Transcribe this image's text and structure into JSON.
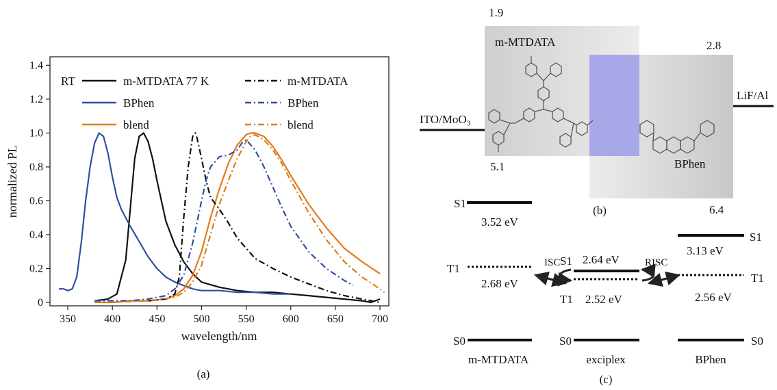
{
  "panel_labels": {
    "a": "(a)",
    "b": "(b)",
    "c": "(c)"
  },
  "chart_data": {
    "type": "line",
    "xlabel": "wavelength/nm",
    "ylabel": "normalized PL",
    "xlim": [
      330,
      710
    ],
    "ylim": [
      -0.02,
      1.45
    ],
    "xticks": [
      350,
      400,
      450,
      500,
      550,
      600,
      650,
      700
    ],
    "yticks": [
      0,
      0.2,
      0.4,
      0.6,
      0.8,
      1.0,
      1.2,
      1.4
    ],
    "ytick_labels": [
      "0",
      "0.2",
      "0.4",
      "0.6",
      "0.8",
      "1.0",
      "1.2",
      "1.4"
    ],
    "grid": false,
    "legend_placement": "top",
    "legend_header": "RT",
    "colors": {
      "mmtdata": "#111111",
      "bphen": "#2f4fa3",
      "blend": "#e07b18"
    },
    "series": [
      {
        "name": "m-MTDATA 77 K",
        "color": "#111111",
        "dash": "solid",
        "x": [
          380,
          395,
          405,
          415,
          420,
          425,
          430,
          435,
          440,
          445,
          450,
          455,
          460,
          470,
          480,
          490,
          500,
          520,
          540,
          560,
          580,
          600,
          620,
          640,
          660,
          680,
          690,
          700
        ],
        "y": [
          0.01,
          0.02,
          0.05,
          0.25,
          0.55,
          0.85,
          0.98,
          1.0,
          0.95,
          0.85,
          0.72,
          0.6,
          0.48,
          0.34,
          0.24,
          0.17,
          0.12,
          0.09,
          0.07,
          0.06,
          0.06,
          0.05,
          0.04,
          0.03,
          0.02,
          0.01,
          0.0,
          0.02
        ]
      },
      {
        "name": "BPhen",
        "color": "#2f4fa3",
        "dash": "solid",
        "x": [
          340,
          345,
          350,
          355,
          360,
          365,
          370,
          375,
          380,
          385,
          390,
          395,
          400,
          405,
          410,
          420,
          430,
          440,
          450,
          460,
          470,
          480,
          490,
          500,
          520,
          540,
          560,
          580,
          600
        ],
        "y": [
          0.08,
          0.08,
          0.07,
          0.08,
          0.15,
          0.35,
          0.6,
          0.8,
          0.94,
          1.0,
          0.98,
          0.88,
          0.74,
          0.62,
          0.55,
          0.45,
          0.36,
          0.27,
          0.2,
          0.15,
          0.12,
          0.1,
          0.08,
          0.07,
          0.07,
          0.06,
          0.06,
          0.05,
          0.05
        ]
      },
      {
        "name": "blend",
        "color": "#e07b18",
        "dash": "solid",
        "x": [
          380,
          400,
          420,
          440,
          460,
          470,
          480,
          490,
          500,
          510,
          520,
          530,
          540,
          550,
          555,
          560,
          570,
          580,
          590,
          600,
          620,
          640,
          660,
          680,
          700
        ],
        "y": [
          0.0,
          0.0,
          0.01,
          0.01,
          0.02,
          0.04,
          0.08,
          0.16,
          0.3,
          0.5,
          0.67,
          0.82,
          0.93,
          0.99,
          1.0,
          1.0,
          0.98,
          0.92,
          0.84,
          0.75,
          0.58,
          0.44,
          0.32,
          0.24,
          0.17
        ]
      },
      {
        "name": "m-MTDATA",
        "color": "#111111",
        "dash": "dashdot",
        "x": [
          440,
          460,
          470,
          475,
          480,
          485,
          490,
          493,
          495,
          500,
          505,
          510,
          520,
          530,
          540,
          560,
          580,
          600,
          620,
          640,
          660,
          680,
          700
        ],
        "y": [
          0.01,
          0.02,
          0.05,
          0.15,
          0.5,
          0.8,
          0.98,
          1.0,
          0.97,
          0.85,
          0.72,
          0.62,
          0.55,
          0.47,
          0.38,
          0.26,
          0.2,
          0.15,
          0.11,
          0.07,
          0.04,
          0.02,
          0.0
        ]
      },
      {
        "name": "BPhen",
        "color": "#2f4fa3",
        "dash": "dashdot",
        "x": [
          380,
          420,
          440,
          460,
          470,
          480,
          490,
          500,
          505,
          510,
          520,
          530,
          540,
          545,
          550,
          560,
          570,
          580,
          590,
          600,
          620,
          640,
          660,
          670
        ],
        "y": [
          0.01,
          0.01,
          0.02,
          0.04,
          0.08,
          0.16,
          0.35,
          0.6,
          0.72,
          0.8,
          0.86,
          0.87,
          0.9,
          0.94,
          0.96,
          0.9,
          0.8,
          0.68,
          0.56,
          0.45,
          0.3,
          0.2,
          0.13,
          0.1
        ]
      },
      {
        "name": "blend",
        "color": "#e07b18",
        "dash": "dashdot",
        "x": [
          400,
          440,
          470,
          480,
          490,
          500,
          510,
          520,
          530,
          540,
          550,
          555,
          560,
          570,
          580,
          590,
          600,
          620,
          640,
          660,
          680,
          700,
          705
        ],
        "y": [
          0.0,
          0.01,
          0.03,
          0.06,
          0.12,
          0.22,
          0.4,
          0.58,
          0.72,
          0.85,
          0.95,
          0.98,
          0.99,
          0.96,
          0.9,
          0.82,
          0.72,
          0.53,
          0.37,
          0.24,
          0.15,
          0.08,
          0.06
        ]
      }
    ]
  },
  "diagram_b": {
    "left_electrode": "ITO/MoO₃",
    "right_electrode": "LiF/Al",
    "donor": {
      "name": "m-MTDATA",
      "lumo": "1.9",
      "homo": "5.1"
    },
    "acceptor": {
      "name": "BPhen",
      "lumo": "2.8",
      "homo": "6.4"
    },
    "colors": {
      "donor_box": "#d9d9d9",
      "acceptor_box": "#cfcfcf",
      "overlap": "#a8a8e8"
    }
  },
  "diagram_c": {
    "columns": [
      "m-MTDATA",
      "exciplex",
      "BPhen"
    ],
    "isc": "ISC",
    "risc": "RISC",
    "mmtdata": {
      "s1_label": "S1",
      "s1_value": "3.52 eV",
      "t1_label": "T1",
      "t1_value": "2.68 eV",
      "s0_label": "S0"
    },
    "exciplex": {
      "s1_label": "S1",
      "s1_value": "2.64 eV",
      "t1_label": "T1",
      "t1_value": "2.52 eV",
      "s0_label": "S0"
    },
    "bphen": {
      "s1_label": "S1",
      "s1_value": "3.13 eV",
      "t1_label": "T1",
      "t1_value": "2.56 eV",
      "s0_label": "S0"
    }
  }
}
